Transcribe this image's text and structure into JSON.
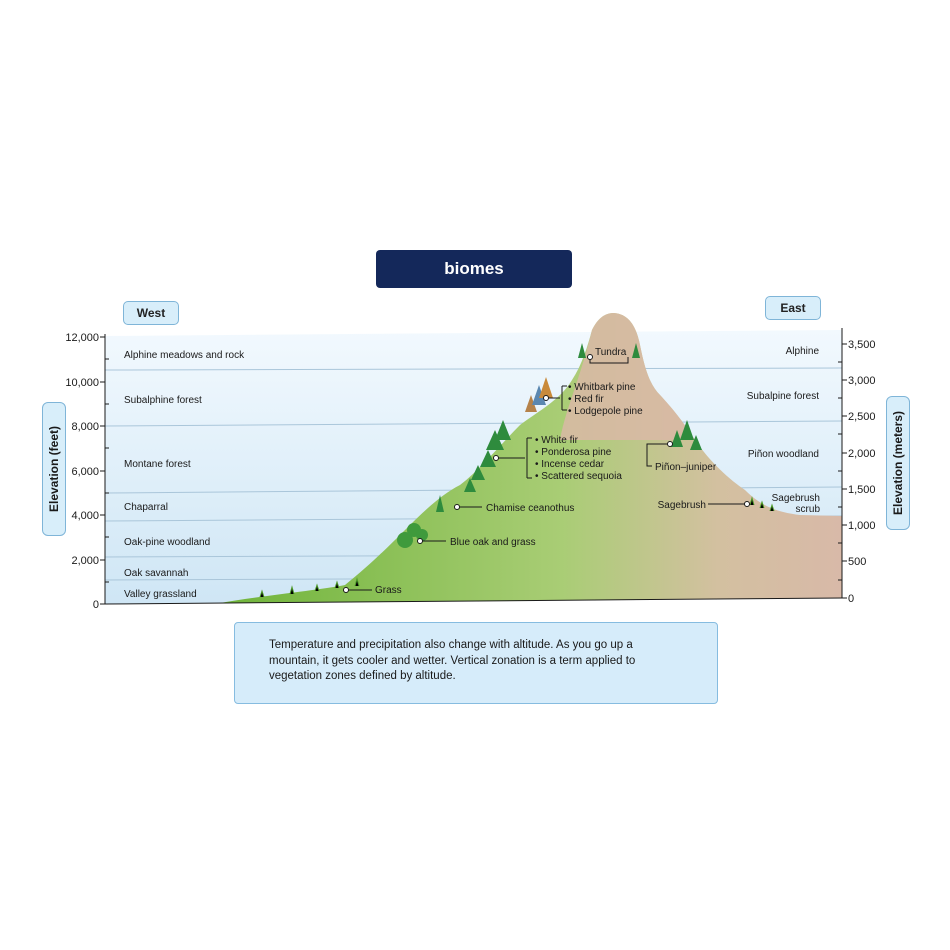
{
  "title": "biomes",
  "sides": {
    "west": "West",
    "east": "East"
  },
  "axes": {
    "left_label": "Elevation (feet)",
    "right_label": "Elevation (meters)",
    "left_ticks": [
      "12,000",
      "10,000",
      "8,000",
      "6,000",
      "4,000",
      "2,000",
      "0"
    ],
    "right_ticks": [
      "3,500",
      "3,000",
      "2,500",
      "2,000",
      "1,500",
      "1,000",
      "500",
      "0"
    ]
  },
  "west_zones": [
    "Alphine meadows and rock",
    "Subalphine forest",
    "Montane forest",
    "Chaparral",
    "Oak-pine woodland",
    "Oak savannah",
    "Valley grassland"
  ],
  "east_zones": {
    "alpine": "Alphine",
    "subalpine": "Subalpine forest",
    "pinon": "Piñon woodland",
    "sagebrush_line1": "Sagebrush",
    "sagebrush_line2": "scrub"
  },
  "callouts": {
    "tundra": "Tundra",
    "subalpine_trees": [
      "Whitbark pine",
      "Red fir",
      "Lodgepole pine"
    ],
    "montane_trees": [
      "White fir",
      "Ponderosa pine",
      "Incense cedar",
      "Scattered sequoia"
    ],
    "pinon_juniper": "Piñon–juniper",
    "chamise": "Chamise ceanothus",
    "sagebrush": "Sagebrush",
    "blue_oak": "Blue oak and grass",
    "grass": "Grass"
  },
  "colors": {
    "title_bg": "#14285a",
    "sky_top": "#eef7fd",
    "sky_bottom": "#cfe6f5",
    "mountain_green": "#8cc152",
    "mountain_tan": "#d9b8a6",
    "label_box": "#d8eefa"
  },
  "note": "Temperature and precipitation also change with altitude. As you go up a mountain, it gets cooler and wetter. Vertical zonation is a term applied to vegetation zones defined by altitude."
}
